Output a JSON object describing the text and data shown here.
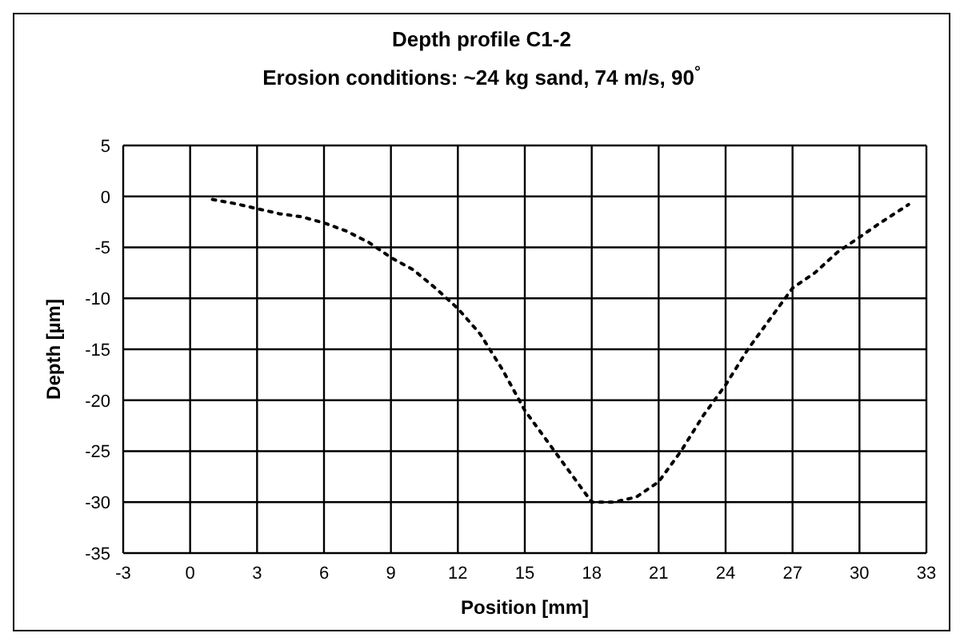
{
  "chart_data": {
    "type": "line",
    "title": "Depth profile C1-2",
    "subtitle": "Erosion conditions: ~24 kg sand, 74 m/s, 90$^{°}$",
    "xlabel": "Position [mm]",
    "ylabel": "Depth [µm]",
    "x": [
      1,
      2,
      3,
      4,
      5,
      6,
      7,
      8,
      9,
      10,
      11,
      12,
      13,
      14,
      15,
      16,
      17,
      18,
      19,
      20,
      21,
      22,
      23,
      24,
      25,
      26,
      27,
      28,
      29,
      30,
      31,
      32.2
    ],
    "series": [
      {
        "color": "#000000",
        "values": [
          -0.3,
          -0.7,
          -1.2,
          -1.7,
          -2,
          -2.6,
          -3.4,
          -4.5,
          -6,
          -7.2,
          -9,
          -11,
          -13.5,
          -17,
          -21,
          -24,
          -27,
          -30,
          -30,
          -29.5,
          -28,
          -25,
          -21.5,
          -18.5,
          -15,
          -12,
          -9,
          -7.5,
          -5.5,
          -4,
          -2.5,
          -0.8
        ]
      }
    ],
    "xlim": [
      -3,
      33
    ],
    "xticks": [
      -3,
      0,
      3,
      6,
      9,
      12,
      15,
      18,
      21,
      24,
      27,
      30,
      33
    ],
    "ylim": [
      -35,
      5
    ],
    "yticks": [
      -35,
      -30,
      -25,
      -20,
      -15,
      -10,
      -5,
      0,
      5
    ],
    "grid": true,
    "legend": false,
    "marker": "none",
    "line_style": "dotted"
  }
}
